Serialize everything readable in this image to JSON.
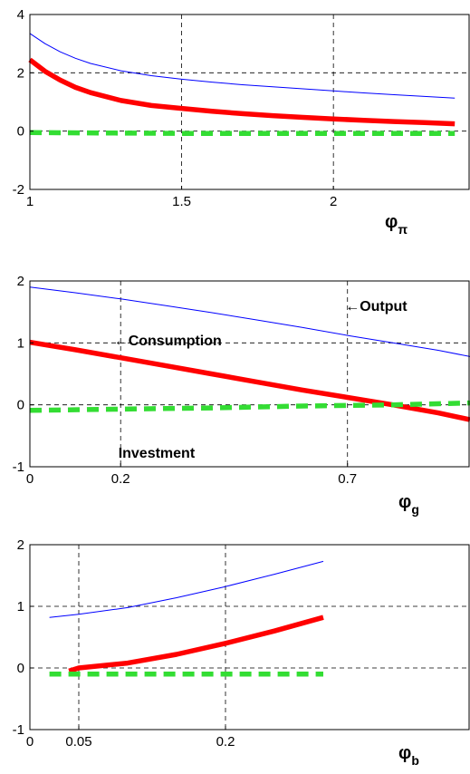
{
  "chart_data": [
    {
      "type": "line",
      "xlabel_symbol": "φ",
      "xlabel_sub": "π",
      "xlim": [
        1,
        2.45
      ],
      "ylim": [
        -2,
        4
      ],
      "xticks": [
        1,
        1.5,
        2
      ],
      "xtick_labels": [
        "1",
        "1.5",
        "2"
      ],
      "yticks": [
        -2,
        0,
        2,
        4
      ],
      "ytick_labels": [
        "-2",
        "0",
        "2",
        "4"
      ],
      "grid": true,
      "annotations": [],
      "series": [
        {
          "color": "#0000ff",
          "width": 1,
          "dash": "",
          "x": [
            1,
            1.05,
            1.1,
            1.15,
            1.2,
            1.3,
            1.4,
            1.5,
            1.6,
            1.7,
            1.8,
            1.9,
            2.0,
            2.1,
            2.2,
            2.3,
            2.4
          ],
          "y": [
            3.35,
            3.0,
            2.72,
            2.5,
            2.32,
            2.07,
            1.9,
            1.78,
            1.68,
            1.59,
            1.52,
            1.45,
            1.38,
            1.31,
            1.25,
            1.19,
            1.13
          ]
        },
        {
          "color": "#ff0000",
          "width": 5.5,
          "dash": "",
          "x": [
            1,
            1.05,
            1.1,
            1.15,
            1.2,
            1.3,
            1.4,
            1.5,
            1.6,
            1.7,
            1.8,
            1.9,
            2.0,
            2.1,
            2.2,
            2.3,
            2.4
          ],
          "y": [
            2.45,
            2.05,
            1.75,
            1.5,
            1.32,
            1.05,
            0.88,
            0.78,
            0.68,
            0.6,
            0.53,
            0.47,
            0.42,
            0.37,
            0.33,
            0.29,
            0.25
          ]
        },
        {
          "color": "#33dd33",
          "width": 5.5,
          "dash": "13 8",
          "x": [
            1,
            1.5,
            2.0,
            2.4
          ],
          "y": [
            -0.05,
            -0.08,
            -0.08,
            -0.08
          ]
        }
      ]
    },
    {
      "type": "line",
      "xlabel_symbol": "φ",
      "xlabel_sub": "g",
      "xlim": [
        0,
        0.97
      ],
      "ylim": [
        -1,
        2
      ],
      "xticks": [
        0,
        0.2,
        0.7
      ],
      "xtick_labels": [
        "0",
        "0.2",
        "0.7"
      ],
      "yticks": [
        -1,
        0,
        1,
        2
      ],
      "ytick_labels": [
        "-1",
        "0",
        "1",
        "2"
      ],
      "grid": true,
      "annotations": [
        {
          "text": "←Output",
          "x": 0.695,
          "y": 1.52
        },
        {
          "text": "←Consumption",
          "x": 0.185,
          "y": 0.96
        },
        {
          "text": "Investment",
          "x": 0.195,
          "y": -0.85
        }
      ],
      "series": [
        {
          "color": "#0000ff",
          "width": 1,
          "dash": "",
          "x": [
            0,
            0.1,
            0.2,
            0.3,
            0.4,
            0.5,
            0.6,
            0.7,
            0.8,
            0.9,
            0.97
          ],
          "y": [
            1.9,
            1.81,
            1.71,
            1.6,
            1.49,
            1.37,
            1.25,
            1.12,
            1.0,
            0.88,
            0.78
          ]
        },
        {
          "color": "#ff0000",
          "width": 5.5,
          "dash": "",
          "x": [
            0,
            0.1,
            0.2,
            0.3,
            0.4,
            0.5,
            0.6,
            0.7,
            0.8,
            0.9,
            0.97
          ],
          "y": [
            1.01,
            0.89,
            0.76,
            0.63,
            0.5,
            0.37,
            0.24,
            0.12,
            0.0,
            -0.13,
            -0.24
          ]
        },
        {
          "color": "#33dd33",
          "width": 5.5,
          "dash": "13 8",
          "x": [
            0,
            0.2,
            0.4,
            0.6,
            0.8,
            0.97
          ],
          "y": [
            -0.09,
            -0.07,
            -0.05,
            -0.02,
            0.0,
            0.03
          ]
        }
      ]
    },
    {
      "type": "line",
      "xlabel_symbol": "φ",
      "xlabel_sub": "b",
      "xlim": [
        0,
        0.45
      ],
      "ylim": [
        -1,
        2
      ],
      "xticks": [
        0,
        0.05,
        0.2
      ],
      "xtick_labels": [
        "0",
        "0.05",
        "0.2"
      ],
      "yticks": [
        -1,
        0,
        1,
        2
      ],
      "ytick_labels": [
        "-1",
        "0",
        "1",
        "2"
      ],
      "grid": true,
      "annotations": [],
      "series": [
        {
          "color": "#0000ff",
          "width": 1,
          "dash": "",
          "x": [
            0.02,
            0.05,
            0.1,
            0.15,
            0.2,
            0.25,
            0.3
          ],
          "y": [
            0.82,
            0.87,
            0.98,
            1.14,
            1.32,
            1.52,
            1.73
          ]
        },
        {
          "color": "#ff0000",
          "width": 5.5,
          "dash": "",
          "x": [
            0.04,
            0.05,
            0.1,
            0.15,
            0.2,
            0.25,
            0.3
          ],
          "y": [
            -0.05,
            0.0,
            0.08,
            0.22,
            0.4,
            0.6,
            0.82
          ]
        },
        {
          "color": "#33dd33",
          "width": 5.5,
          "dash": "13 8",
          "x": [
            0.02,
            0.1,
            0.2,
            0.3
          ],
          "y": [
            -0.1,
            -0.1,
            -0.1,
            -0.1
          ]
        }
      ]
    }
  ]
}
